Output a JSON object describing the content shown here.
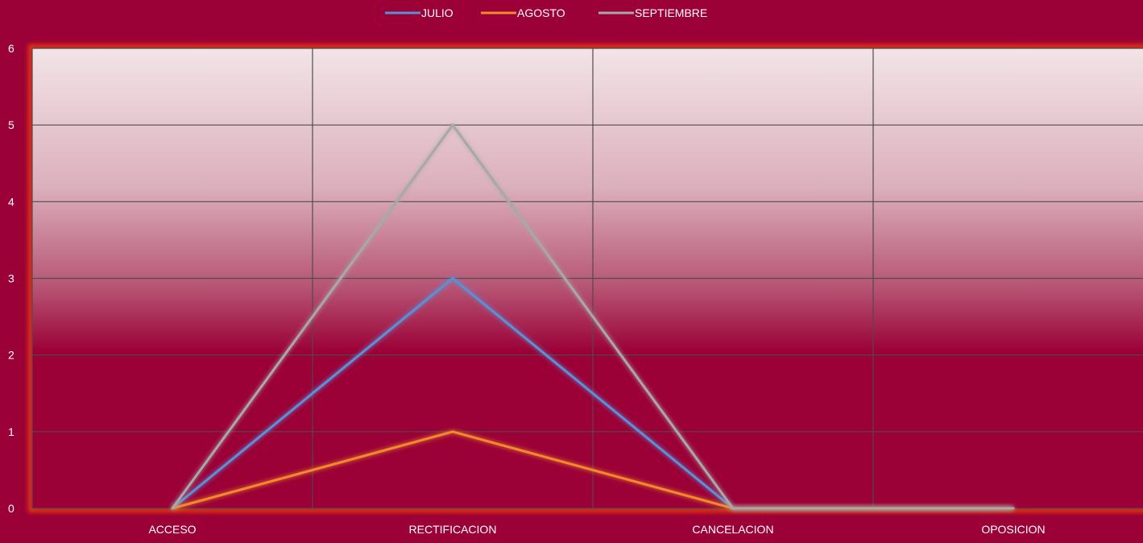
{
  "chart_data": {
    "type": "line",
    "categories": [
      "ACCESO",
      "RECTIFICACION",
      "CANCELACION",
      "OPOSICION"
    ],
    "series": [
      {
        "name": "JULIO",
        "values": [
          0,
          3,
          0,
          0
        ],
        "color": "#5b8fd6"
      },
      {
        "name": "AGOSTO",
        "values": [
          0,
          1,
          0,
          0
        ],
        "color": "#f08a2c"
      },
      {
        "name": "SEPTIEMBRE",
        "values": [
          0,
          5,
          0,
          0
        ],
        "color": "#a8a8a8"
      }
    ],
    "y_ticks": [
      "0",
      "1",
      "2",
      "3",
      "4",
      "5",
      "6"
    ],
    "ylim": [
      0,
      6
    ],
    "grid": true,
    "legend_position": "top-center",
    "colors": {
      "background": "#9b0036",
      "plot_top": "#f2e4e6",
      "plot_bottom": "#9b0036",
      "gridline": "#4d4d4d",
      "text": "#ffffff",
      "border_glow": "#e8380f"
    }
  }
}
